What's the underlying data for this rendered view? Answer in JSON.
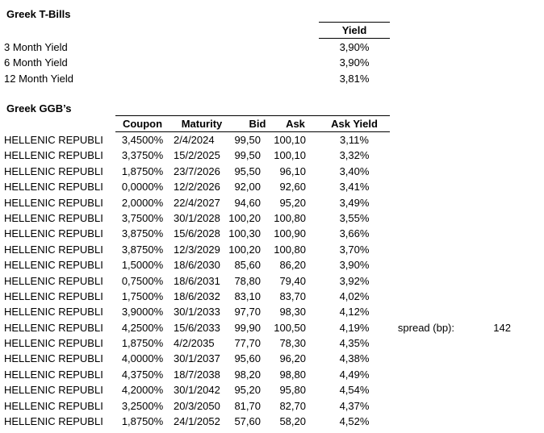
{
  "colors": {
    "text": "#000000",
    "background": "#ffffff",
    "border": "#000000"
  },
  "tbills": {
    "title": "Greek T-Bills",
    "yield_header": "Yield",
    "rows": [
      {
        "label": "3 Month Yield",
        "value": "3,90%"
      },
      {
        "label": "6 Month Yield",
        "value": "3,90%"
      },
      {
        "label": "12 Month Yield",
        "value": "3,81%"
      }
    ]
  },
  "ggb": {
    "title": "Greek GGB’s",
    "headers": [
      "Coupon",
      "Maturity",
      "Bid",
      "Ask",
      "Ask Yield"
    ],
    "rows": [
      {
        "name": "HELLENIC REPUBLI",
        "coupon": "3,4500%",
        "maturity": "2/4/2024",
        "bid": "99,50",
        "ask": "100,10",
        "ask_yield": "3,11%"
      },
      {
        "name": "HELLENIC REPUBLI",
        "coupon": "3,3750%",
        "maturity": "15/2/2025",
        "bid": "99,50",
        "ask": "100,10",
        "ask_yield": "3,32%"
      },
      {
        "name": "HELLENIC REPUBLI",
        "coupon": "1,8750%",
        "maturity": "23/7/2026",
        "bid": "95,50",
        "ask": "96,10",
        "ask_yield": "3,40%"
      },
      {
        "name": "HELLENIC REPUBLI",
        "coupon": "0,0000%",
        "maturity": "12/2/2026",
        "bid": "92,00",
        "ask": "92,60",
        "ask_yield": "3,41%"
      },
      {
        "name": "HELLENIC REPUBLI",
        "coupon": "2,0000%",
        "maturity": "22/4/2027",
        "bid": "94,60",
        "ask": "95,20",
        "ask_yield": "3,49%"
      },
      {
        "name": "HELLENIC REPUBLI",
        "coupon": "3,7500%",
        "maturity": "30/1/2028",
        "bid": "100,20",
        "ask": "100,80",
        "ask_yield": "3,55%"
      },
      {
        "name": "HELLENIC REPUBLI",
        "coupon": "3,8750%",
        "maturity": "15/6/2028",
        "bid": "100,30",
        "ask": "100,90",
        "ask_yield": "3,66%"
      },
      {
        "name": "HELLENIC REPUBLI",
        "coupon": "3,8750%",
        "maturity": "12/3/2029",
        "bid": "100,20",
        "ask": "100,80",
        "ask_yield": "3,70%"
      },
      {
        "name": "HELLENIC REPUBLI",
        "coupon": "1,5000%",
        "maturity": "18/6/2030",
        "bid": "85,60",
        "ask": "86,20",
        "ask_yield": "3,90%"
      },
      {
        "name": "HELLENIC REPUBLI",
        "coupon": "0,7500%",
        "maturity": "18/6/2031",
        "bid": "78,80",
        "ask": "79,40",
        "ask_yield": "3,92%"
      },
      {
        "name": "HELLENIC REPUBLI",
        "coupon": "1,7500%",
        "maturity": "18/6/2032",
        "bid": "83,10",
        "ask": "83,70",
        "ask_yield": "4,02%"
      },
      {
        "name": "HELLENIC REPUBLI",
        "coupon": "3,9000%",
        "maturity": "30/1/2033",
        "bid": "97,70",
        "ask": "98,30",
        "ask_yield": "4,12%"
      },
      {
        "name": "HELLENIC REPUBLI",
        "coupon": "4,2500%",
        "maturity": "15/6/2033",
        "bid": "99,90",
        "ask": "100,50",
        "ask_yield": "4,19%"
      },
      {
        "name": "HELLENIC REPUBLI",
        "coupon": "1,8750%",
        "maturity": "4/2/2035",
        "bid": "77,70",
        "ask": "78,30",
        "ask_yield": "4,35%"
      },
      {
        "name": "HELLENIC REPUBLI",
        "coupon": "4,0000%",
        "maturity": "30/1/2037",
        "bid": "95,60",
        "ask": "96,20",
        "ask_yield": "4,38%"
      },
      {
        "name": "HELLENIC REPUBLI",
        "coupon": "4,3750%",
        "maturity": "18/7/2038",
        "bid": "98,20",
        "ask": "98,80",
        "ask_yield": "4,49%"
      },
      {
        "name": "HELLENIC REPUBLI",
        "coupon": "4,2000%",
        "maturity": "30/1/2042",
        "bid": "95,20",
        "ask": "95,80",
        "ask_yield": "4,54%"
      },
      {
        "name": "HELLENIC REPUBLI",
        "coupon": "3,2500%",
        "maturity": "20/3/2050",
        "bid": "81,70",
        "ask": "82,70",
        "ask_yield": "4,37%"
      },
      {
        "name": "HELLENIC REPUBLI",
        "coupon": "1,8750%",
        "maturity": "24/1/2052",
        "bid": "57,60",
        "ask": "58,20",
        "ask_yield": "4,52%"
      }
    ]
  },
  "spread": {
    "label": "spread (bp):",
    "value": "142"
  }
}
